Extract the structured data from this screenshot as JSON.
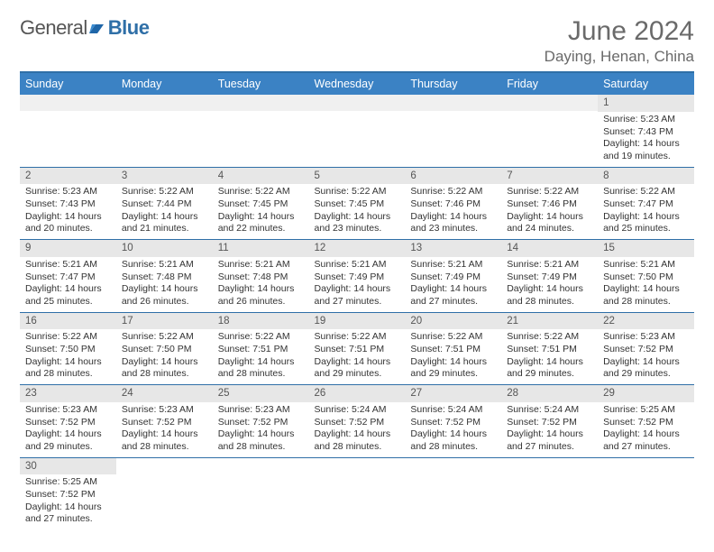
{
  "brand": {
    "part1": "General",
    "part2": "Blue"
  },
  "title": "June 2024",
  "location": "Daying, Henan, China",
  "colors": {
    "header_bg": "#3b82c4",
    "rule": "#2f6fa7",
    "daybar": "#e7e7e7",
    "text": "#333333",
    "muted": "#6a6a6a"
  },
  "weekdays": [
    "Sunday",
    "Monday",
    "Tuesday",
    "Wednesday",
    "Thursday",
    "Friday",
    "Saturday"
  ],
  "layout": {
    "first_weekday_index": 6,
    "days_in_month": 30
  },
  "days": {
    "1": {
      "sunrise": "5:23 AM",
      "sunset": "7:43 PM",
      "daylight": "14 hours and 19 minutes."
    },
    "2": {
      "sunrise": "5:23 AM",
      "sunset": "7:43 PM",
      "daylight": "14 hours and 20 minutes."
    },
    "3": {
      "sunrise": "5:22 AM",
      "sunset": "7:44 PM",
      "daylight": "14 hours and 21 minutes."
    },
    "4": {
      "sunrise": "5:22 AM",
      "sunset": "7:45 PM",
      "daylight": "14 hours and 22 minutes."
    },
    "5": {
      "sunrise": "5:22 AM",
      "sunset": "7:45 PM",
      "daylight": "14 hours and 23 minutes."
    },
    "6": {
      "sunrise": "5:22 AM",
      "sunset": "7:46 PM",
      "daylight": "14 hours and 23 minutes."
    },
    "7": {
      "sunrise": "5:22 AM",
      "sunset": "7:46 PM",
      "daylight": "14 hours and 24 minutes."
    },
    "8": {
      "sunrise": "5:22 AM",
      "sunset": "7:47 PM",
      "daylight": "14 hours and 25 minutes."
    },
    "9": {
      "sunrise": "5:21 AM",
      "sunset": "7:47 PM",
      "daylight": "14 hours and 25 minutes."
    },
    "10": {
      "sunrise": "5:21 AM",
      "sunset": "7:48 PM",
      "daylight": "14 hours and 26 minutes."
    },
    "11": {
      "sunrise": "5:21 AM",
      "sunset": "7:48 PM",
      "daylight": "14 hours and 26 minutes."
    },
    "12": {
      "sunrise": "5:21 AM",
      "sunset": "7:49 PM",
      "daylight": "14 hours and 27 minutes."
    },
    "13": {
      "sunrise": "5:21 AM",
      "sunset": "7:49 PM",
      "daylight": "14 hours and 27 minutes."
    },
    "14": {
      "sunrise": "5:21 AM",
      "sunset": "7:49 PM",
      "daylight": "14 hours and 28 minutes."
    },
    "15": {
      "sunrise": "5:21 AM",
      "sunset": "7:50 PM",
      "daylight": "14 hours and 28 minutes."
    },
    "16": {
      "sunrise": "5:22 AM",
      "sunset": "7:50 PM",
      "daylight": "14 hours and 28 minutes."
    },
    "17": {
      "sunrise": "5:22 AM",
      "sunset": "7:50 PM",
      "daylight": "14 hours and 28 minutes."
    },
    "18": {
      "sunrise": "5:22 AM",
      "sunset": "7:51 PM",
      "daylight": "14 hours and 28 minutes."
    },
    "19": {
      "sunrise": "5:22 AM",
      "sunset": "7:51 PM",
      "daylight": "14 hours and 29 minutes."
    },
    "20": {
      "sunrise": "5:22 AM",
      "sunset": "7:51 PM",
      "daylight": "14 hours and 29 minutes."
    },
    "21": {
      "sunrise": "5:22 AM",
      "sunset": "7:51 PM",
      "daylight": "14 hours and 29 minutes."
    },
    "22": {
      "sunrise": "5:23 AM",
      "sunset": "7:52 PM",
      "daylight": "14 hours and 29 minutes."
    },
    "23": {
      "sunrise": "5:23 AM",
      "sunset": "7:52 PM",
      "daylight": "14 hours and 29 minutes."
    },
    "24": {
      "sunrise": "5:23 AM",
      "sunset": "7:52 PM",
      "daylight": "14 hours and 28 minutes."
    },
    "25": {
      "sunrise": "5:23 AM",
      "sunset": "7:52 PM",
      "daylight": "14 hours and 28 minutes."
    },
    "26": {
      "sunrise": "5:24 AM",
      "sunset": "7:52 PM",
      "daylight": "14 hours and 28 minutes."
    },
    "27": {
      "sunrise": "5:24 AM",
      "sunset": "7:52 PM",
      "daylight": "14 hours and 28 minutes."
    },
    "28": {
      "sunrise": "5:24 AM",
      "sunset": "7:52 PM",
      "daylight": "14 hours and 27 minutes."
    },
    "29": {
      "sunrise": "5:25 AM",
      "sunset": "7:52 PM",
      "daylight": "14 hours and 27 minutes."
    },
    "30": {
      "sunrise": "5:25 AM",
      "sunset": "7:52 PM",
      "daylight": "14 hours and 27 minutes."
    }
  },
  "labels": {
    "sunrise": "Sunrise:",
    "sunset": "Sunset:",
    "daylight": "Daylight:"
  }
}
